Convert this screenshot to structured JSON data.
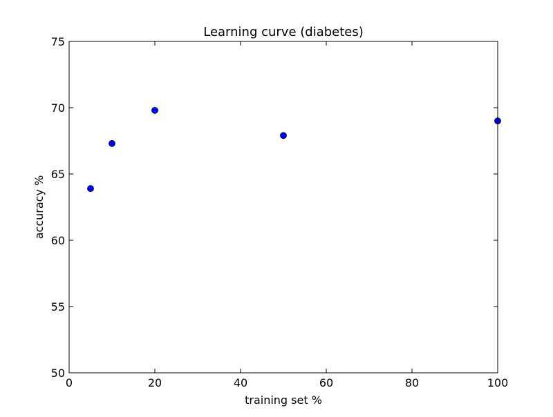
{
  "chart_data": {
    "type": "scatter",
    "title": "Learning curve (diabetes)",
    "xlabel": "training set %",
    "ylabel": "accuracy %",
    "xlim": [
      0,
      100
    ],
    "ylim": [
      50,
      75
    ],
    "xticks": [
      0,
      20,
      40,
      60,
      80,
      100
    ],
    "yticks": [
      50,
      55,
      60,
      65,
      70,
      75
    ],
    "grid": false,
    "marker_color": "#0000ff",
    "series": [
      {
        "x": [
          5,
          10,
          20,
          50,
          100
        ],
        "y": [
          63.9,
          67.3,
          69.8,
          67.9,
          69.0
        ]
      }
    ]
  }
}
